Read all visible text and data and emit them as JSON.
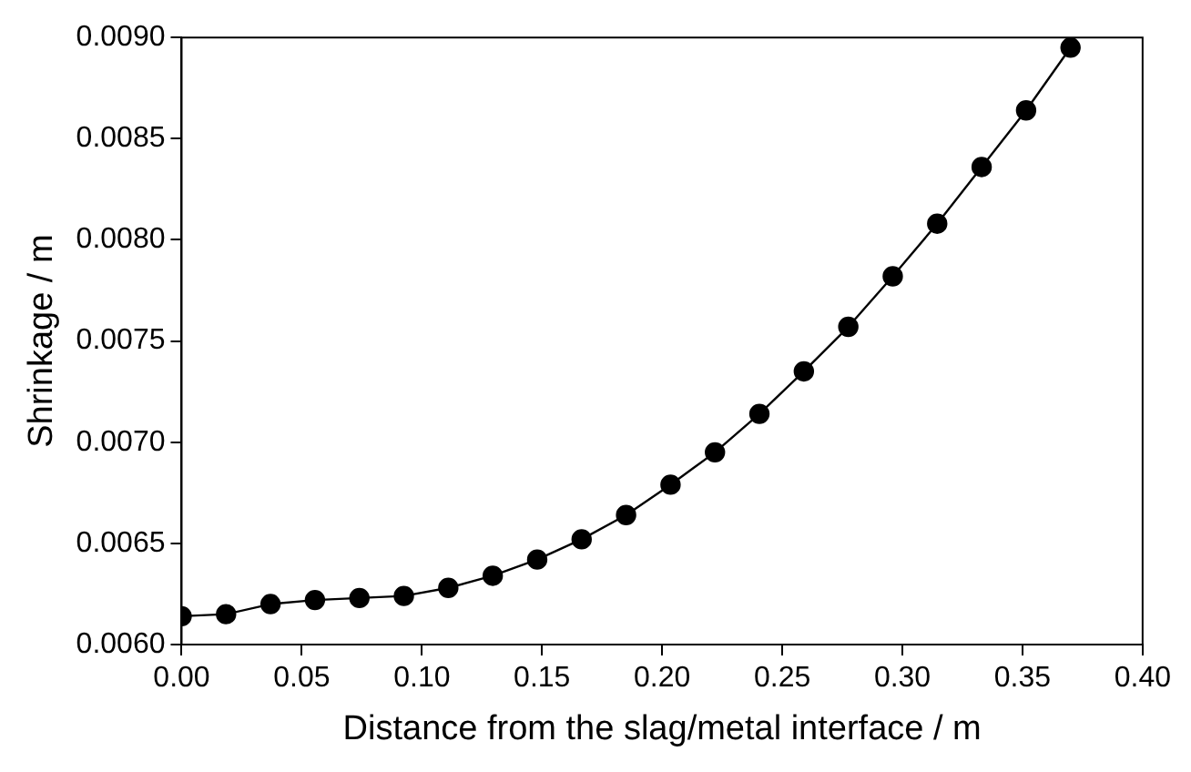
{
  "chart_data": {
    "type": "line",
    "xlabel": "Distance from the slag/metal interface / m",
    "ylabel": "Shrinkage / m",
    "x": [
      0,
      0.0185,
      0.037,
      0.0555,
      0.074,
      0.0925,
      0.111,
      0.1295,
      0.148,
      0.1665,
      0.185,
      0.2035,
      0.222,
      0.2405,
      0.259,
      0.2775,
      0.296,
      0.3145,
      0.333,
      0.3515,
      0.37
    ],
    "series": [
      {
        "color": "#000000",
        "values": [
          0.00614,
          0.00615,
          0.0062,
          0.00622,
          0.00623,
          0.00624,
          0.00628,
          0.00634,
          0.00642,
          0.00652,
          0.00664,
          0.00679,
          0.00695,
          0.00714,
          0.00735,
          0.00757,
          0.00782,
          0.00808,
          0.00836,
          0.00864,
          0.00895
        ]
      }
    ],
    "xlim": [
      0,
      0.4
    ],
    "xticks": [
      {
        "value": 0,
        "label": "0.00"
      },
      0.05,
      {
        "value": 0.1,
        "label": "0.10"
      },
      0.15,
      {
        "value": 0.2,
        "label": "0.20"
      },
      0.25,
      {
        "value": 0.3,
        "label": "0.30"
      },
      0.35,
      {
        "value": 0.4,
        "label": "0.40"
      }
    ],
    "ylim": [
      0.006,
      0.009
    ],
    "yticks": [
      {
        "value": 0.006,
        "label": "0.0060"
      },
      0.0065,
      {
        "value": 0.007,
        "label": "0.0070"
      },
      0.0075,
      {
        "value": 0.008,
        "label": "0.0080"
      },
      0.0085,
      {
        "value": 0.009,
        "label": "0.0090"
      }
    ],
    "grid": false,
    "legend": false,
    "marker": "circle",
    "line_style": "solid"
  }
}
